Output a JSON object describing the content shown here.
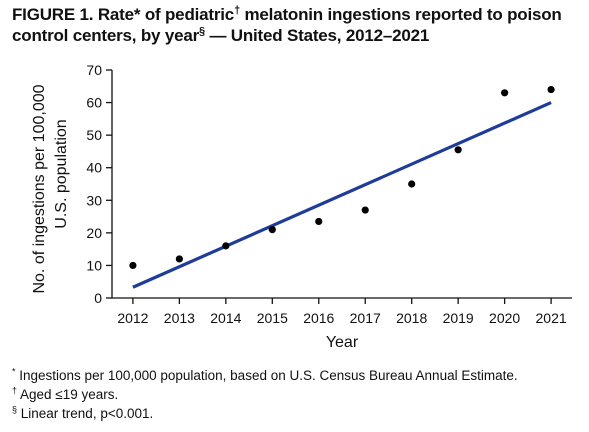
{
  "figure": {
    "title_pre": "FIGURE 1. Rate* of pediatric",
    "title_mark1": "†",
    "title_mid": " melatonin ingestions reported to poison control centers, by year",
    "title_mark2": "§",
    "title_post": " — United States, 2012–2021"
  },
  "footnotes": [
    {
      "mark": "*",
      "text": " Ingestions per 100,000 population, based on U.S. Census Bureau Annual Estimate."
    },
    {
      "mark": "†",
      "text": " Aged ≤19 years."
    },
    {
      "mark": "§",
      "text": " Linear trend, p<0.001."
    }
  ],
  "chart_data": {
    "type": "scatter",
    "x": [
      2012,
      2013,
      2014,
      2015,
      2016,
      2017,
      2018,
      2019,
      2020,
      2021
    ],
    "y": [
      10,
      12,
      16,
      21,
      23.5,
      27,
      35,
      45.5,
      63,
      64
    ],
    "trend_line": {
      "x": [
        2012,
        2021
      ],
      "y": [
        3.3,
        60
      ]
    },
    "xlabel": "Year",
    "ylabel_line1": "No. of ingestions per 100,000",
    "ylabel_line2": "U.S. population",
    "xlim": [
      2011.55,
      2021.45
    ],
    "ylim": [
      0,
      70
    ],
    "x_ticks": [
      2012,
      2013,
      2014,
      2015,
      2016,
      2017,
      2018,
      2019,
      2020,
      2021
    ],
    "y_ticks": [
      0,
      10,
      20,
      30,
      40,
      50,
      60,
      70
    ],
    "point_color": "#000000",
    "line_color": "#1f3c99",
    "grid": false
  }
}
